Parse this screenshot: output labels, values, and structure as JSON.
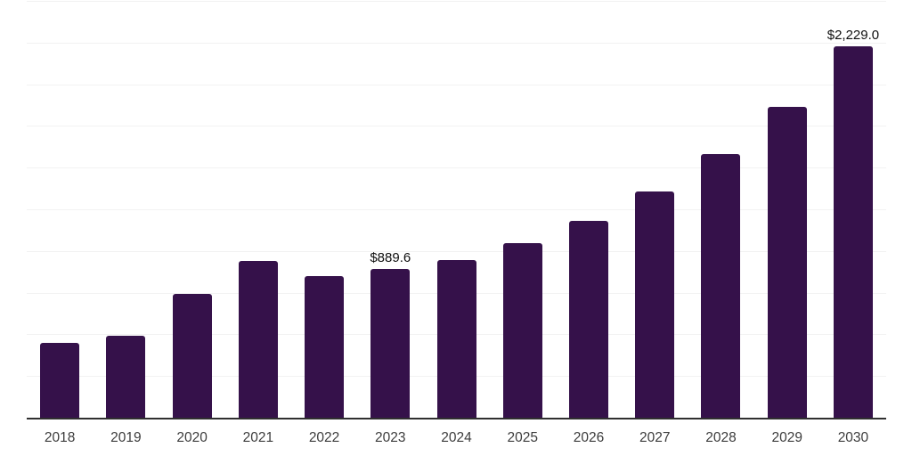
{
  "chart_data": {
    "type": "bar",
    "title": "",
    "xlabel": "",
    "ylabel": "",
    "categories": [
      "2018",
      "2019",
      "2020",
      "2021",
      "2022",
      "2023",
      "2024",
      "2025",
      "2026",
      "2027",
      "2028",
      "2029",
      "2030"
    ],
    "values": [
      450,
      489,
      740,
      939,
      852,
      889.6,
      948,
      1049,
      1182,
      1357,
      1579,
      1863,
      2229
    ],
    "value_labels": [
      "",
      "",
      "",
      "",
      "",
      "$889.6",
      "",
      "",
      "",
      "",
      "",
      "",
      "$2,229.0"
    ],
    "ylim": [
      0,
      2500
    ],
    "gridline_interval": 250,
    "grid": "horizontal-only",
    "legend": "none",
    "colors": {
      "bar": "#35114a",
      "axis_line": "#303030",
      "gridline": "#f2f2f2",
      "tick_label": "#3c3c3c",
      "value_label": "#0f0f0f",
      "background": "#ffffff"
    }
  }
}
